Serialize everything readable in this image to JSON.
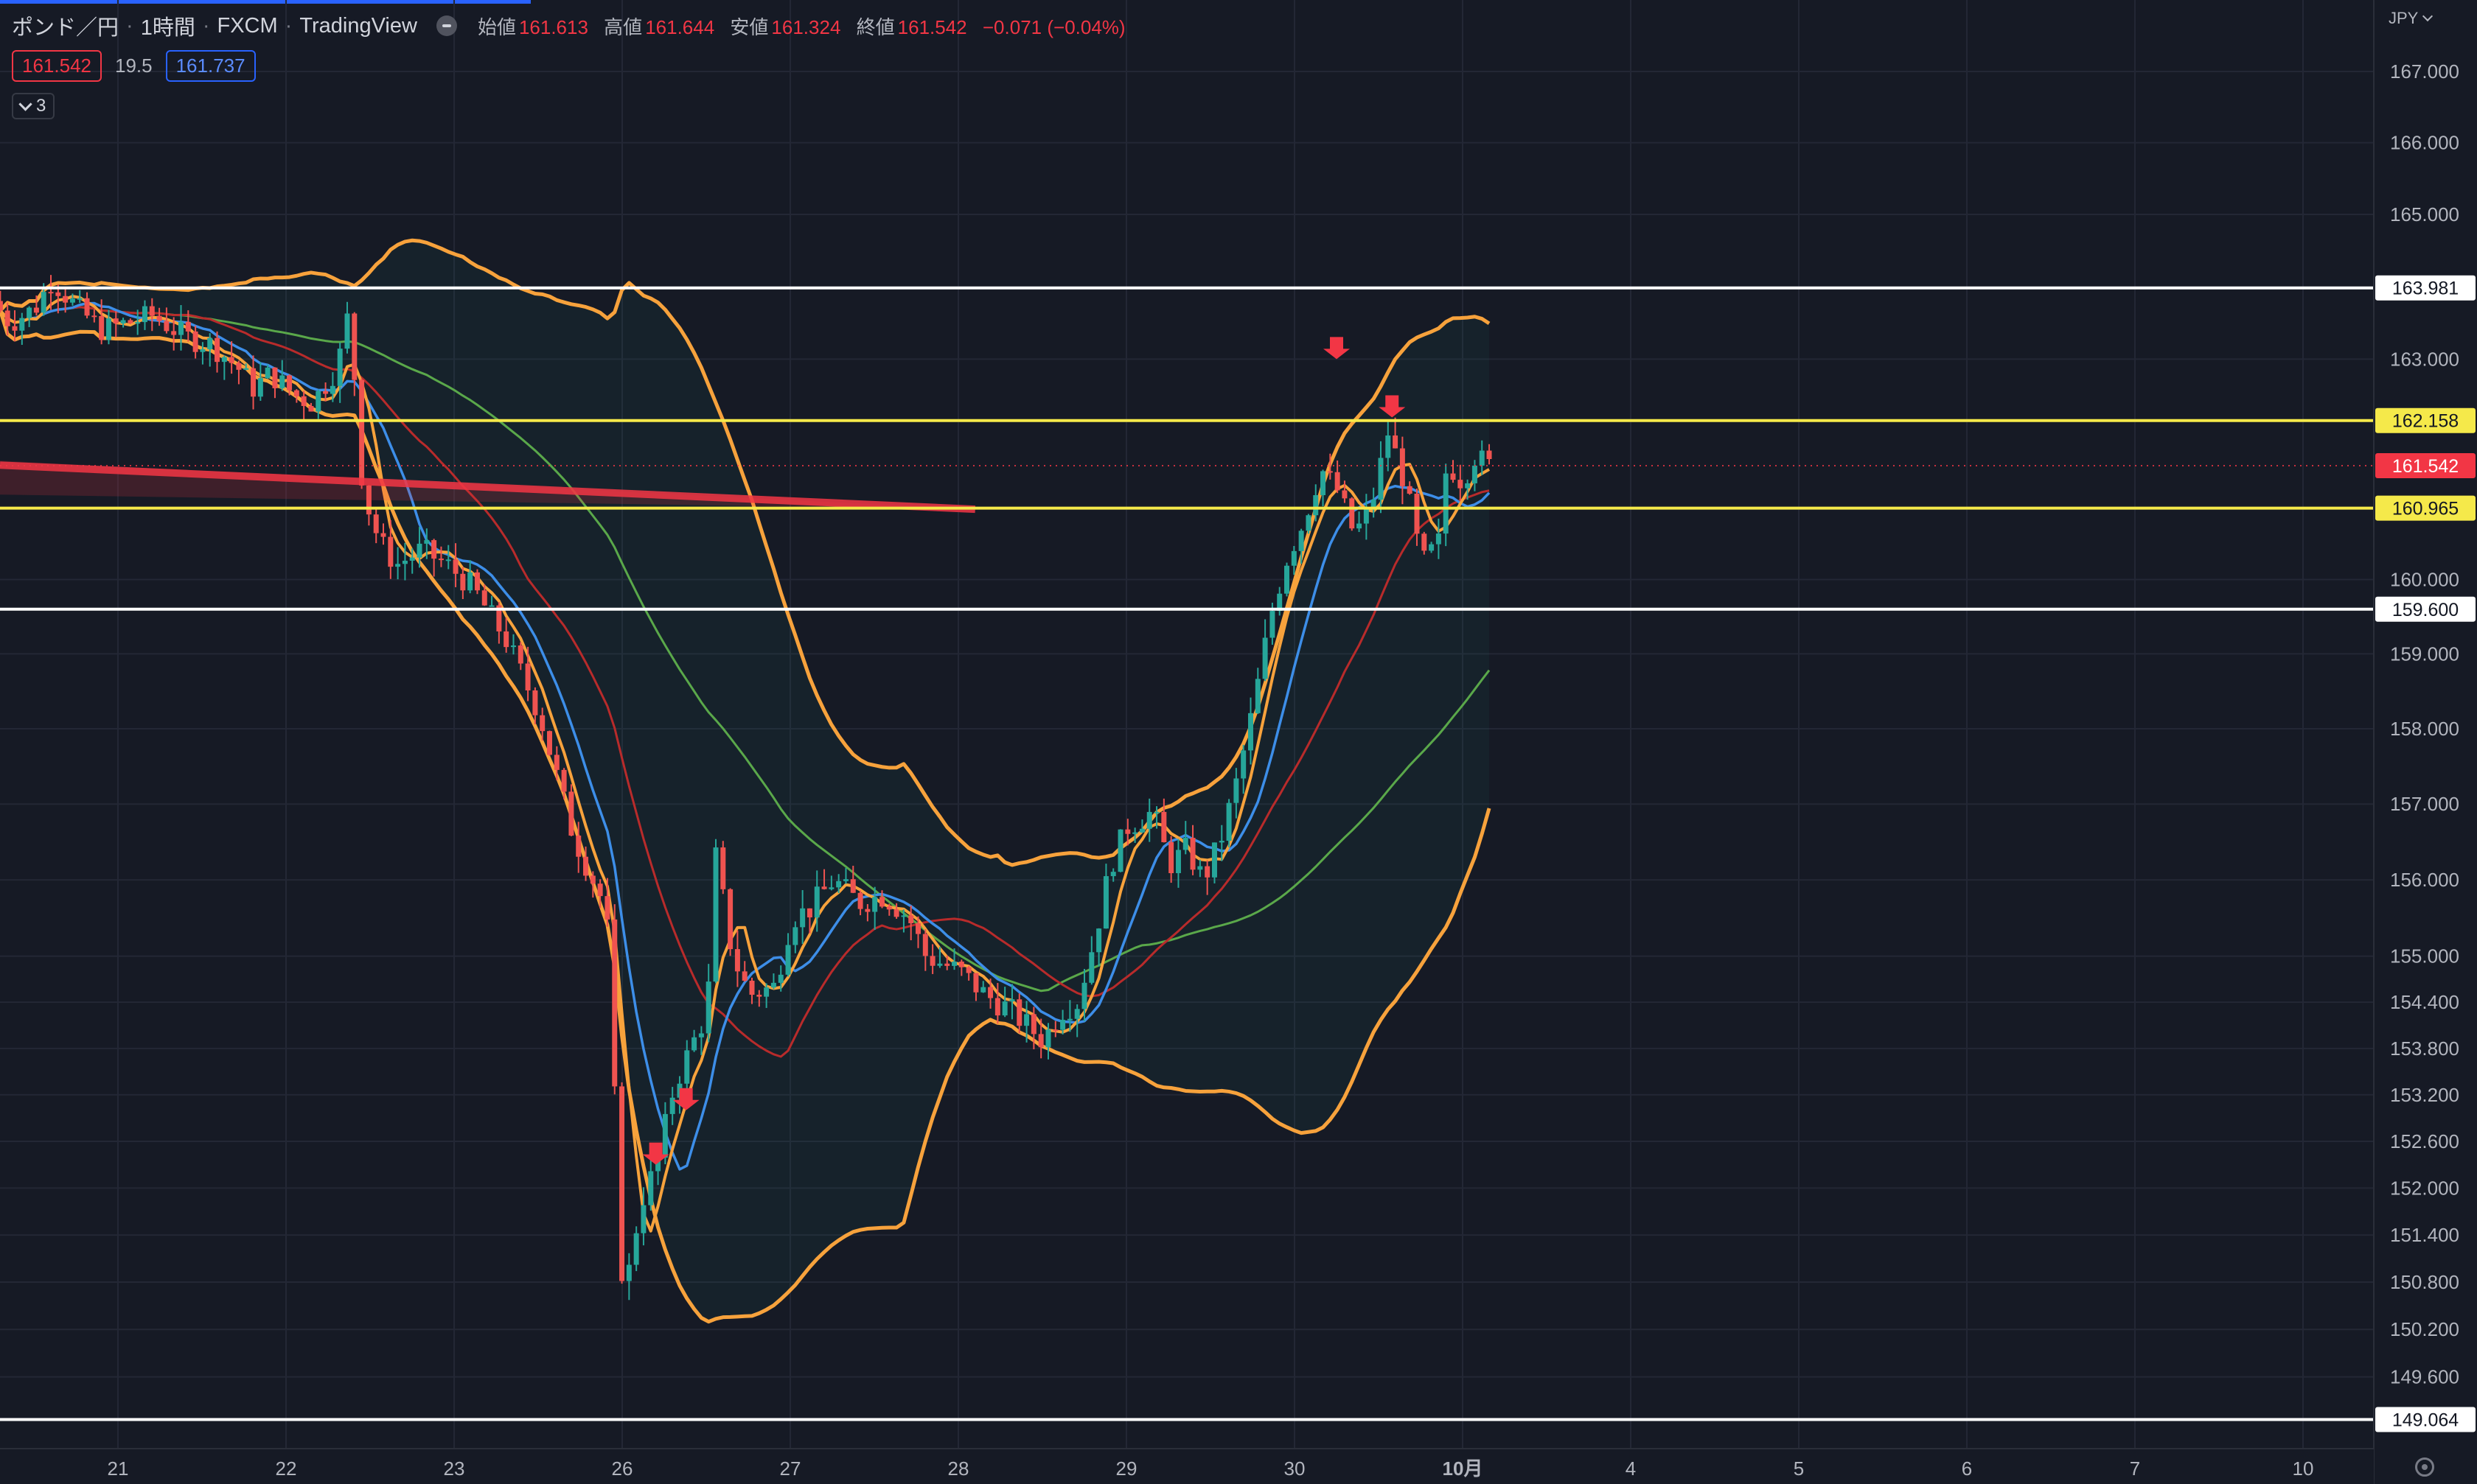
{
  "header": {
    "symbol": "ポンド／円",
    "interval": "1時間",
    "broker": "FXCM",
    "platform": "TradingView",
    "open_label": "始値",
    "open": "161.613",
    "high_label": "高値",
    "high": "161.644",
    "low_label": "安値",
    "low": "161.324",
    "close_label": "終値",
    "close": "161.542",
    "change": "−0.071 (−0.04%)"
  },
  "quote": {
    "bid": "161.542",
    "spread": "19.5",
    "ask": "161.737"
  },
  "indicators_toggle": {
    "count": "3"
  },
  "currency": "JPY",
  "colors": {
    "bg": "#161a25",
    "bull": "#26a69a",
    "bear": "#ef5350",
    "bb": "#f7a23c",
    "ma_fast": "#f7a23c",
    "ma_blue": "#3d8ee8",
    "ma_red": "#b82b2b",
    "ma_green": "#5aa84a",
    "yellow_line": "#f5e94a"
  },
  "chart_data": {
    "type": "candlestick",
    "y_axis": {
      "scale": "log",
      "ylim": [
        148.8,
        167.8
      ],
      "ticks": [
        "167.000",
        "166.000",
        "165.000",
        "163.000",
        "160.000",
        "159.000",
        "158.000",
        "157.000",
        "156.000",
        "155.000",
        "154.400",
        "153.800",
        "153.200",
        "152.600",
        "152.000",
        "151.400",
        "150.800",
        "150.200",
        "149.600"
      ]
    },
    "x_axis": {
      "ticks": [
        {
          "label": "21",
          "day": 0
        },
        {
          "label": "22",
          "day": 1
        },
        {
          "label": "23",
          "day": 2
        },
        {
          "label": "26",
          "day": 3
        },
        {
          "label": "27",
          "day": 4
        },
        {
          "label": "28",
          "day": 5
        },
        {
          "label": "29",
          "day": 6
        },
        {
          "label": "30",
          "day": 7
        },
        {
          "label": "10月",
          "day": 8
        },
        {
          "label": "4",
          "day": 9
        },
        {
          "label": "5",
          "day": 10
        },
        {
          "label": "6",
          "day": 11
        },
        {
          "label": "7",
          "day": 12
        },
        {
          "label": "10",
          "day": 13
        }
      ]
    },
    "horizontal_lines": [
      {
        "value": 163.981,
        "label": "163.981",
        "color": "#ffffff"
      },
      {
        "value": 162.158,
        "label": "162.158",
        "color": "#f5e94a"
      },
      {
        "value": 160.965,
        "label": "160.965",
        "color": "#f5e94a"
      },
      {
        "value": 159.6,
        "label": "159.600",
        "color": "#ffffff"
      },
      {
        "value": 149.064,
        "label": "149.064",
        "color": "#ffffff"
      }
    ],
    "last_price": {
      "value": 161.542,
      "label": "161.542"
    },
    "trend_line": {
      "from": {
        "day": -0.7,
        "value": 161.55
      },
      "to": {
        "day": 5.1,
        "value": 160.95
      }
    },
    "arrows": [
      {
        "day": 3.2,
        "value": 152.3
      },
      {
        "day": 3.38,
        "value": 153.0
      },
      {
        "day": 7.25,
        "value": 163.0
      },
      {
        "day": 7.58,
        "value": 162.2
      }
    ],
    "price_path": [
      [
        -0.7,
        163.8
      ],
      [
        -0.6,
        163.5
      ],
      [
        -0.45,
        163.7
      ],
      [
        -0.35,
        164.1
      ],
      [
        -0.2,
        163.7
      ],
      [
        -0.05,
        163.4
      ],
      [
        0.1,
        163.5
      ],
      [
        0.25,
        163.6
      ],
      [
        0.45,
        163.3
      ],
      [
        0.6,
        163.2
      ],
      [
        0.75,
        162.9
      ],
      [
        0.85,
        162.6
      ],
      [
        0.95,
        162.8
      ],
      [
        1.1,
        162.5
      ],
      [
        1.2,
        162.4
      ],
      [
        1.35,
        162.9
      ],
      [
        1.42,
        163.7
      ],
      [
        1.5,
        161.2
      ],
      [
        1.6,
        160.5
      ],
      [
        1.7,
        160.2
      ],
      [
        1.85,
        160.4
      ],
      [
        2.0,
        160.2
      ],
      [
        2.15,
        159.9
      ],
      [
        2.35,
        159.2
      ],
      [
        2.55,
        158.2
      ],
      [
        2.75,
        156.6
      ],
      [
        2.95,
        155.6
      ],
      [
        3.05,
        150.5
      ],
      [
        3.15,
        151.8
      ],
      [
        3.25,
        152.3
      ],
      [
        3.35,
        153.3
      ],
      [
        3.45,
        153.8
      ],
      [
        3.55,
        154.3
      ],
      [
        3.6,
        156.3
      ],
      [
        3.7,
        155.0
      ],
      [
        3.8,
        154.5
      ],
      [
        3.95,
        154.6
      ],
      [
        4.05,
        155.5
      ],
      [
        4.15,
        155.6
      ],
      [
        4.3,
        156.0
      ],
      [
        4.45,
        155.7
      ],
      [
        4.6,
        155.8
      ],
      [
        4.75,
        155.5
      ],
      [
        4.85,
        155.0
      ],
      [
        4.95,
        154.9
      ],
      [
        5.05,
        154.8
      ],
      [
        5.2,
        154.5
      ],
      [
        5.35,
        154.3
      ],
      [
        5.45,
        154.1
      ],
      [
        5.55,
        153.9
      ],
      [
        5.65,
        154.3
      ],
      [
        5.75,
        154.4
      ],
      [
        5.85,
        155.2
      ],
      [
        5.95,
        156.2
      ],
      [
        6.05,
        156.7
      ],
      [
        6.2,
        156.9
      ],
      [
        6.3,
        156.2
      ],
      [
        6.4,
        156.4
      ],
      [
        6.5,
        156.0
      ],
      [
        6.6,
        156.5
      ],
      [
        6.7,
        157.3
      ],
      [
        6.8,
        158.3
      ],
      [
        6.9,
        159.5
      ],
      [
        7.0,
        160.3
      ],
      [
        7.1,
        160.8
      ],
      [
        7.2,
        161.5
      ],
      [
        7.3,
        161.2
      ],
      [
        7.4,
        160.6
      ],
      [
        7.5,
        161.0
      ],
      [
        7.6,
        162.0
      ],
      [
        7.7,
        161.3
      ],
      [
        7.8,
        160.2
      ],
      [
        7.9,
        160.5
      ],
      [
        7.95,
        161.6
      ],
      [
        8.05,
        161.3
      ],
      [
        8.1,
        161.7
      ],
      [
        8.2,
        161.54
      ]
    ]
  }
}
